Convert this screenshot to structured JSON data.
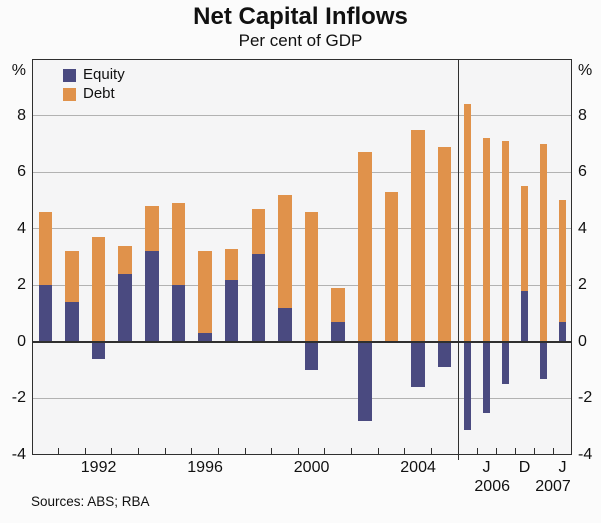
{
  "title": "Net Capital Inflows",
  "subtitle": "Per cent of GDP",
  "source_note": "Sources: ABS; RBA",
  "axis": {
    "unit_label": "%",
    "y_min": -4,
    "y_max": 10,
    "y_tick_values": [
      8,
      6,
      4,
      2,
      0,
      -2,
      -4
    ],
    "gridline_values": [
      8,
      6,
      4,
      2,
      -2
    ]
  },
  "legend": [
    {
      "label": "Equity",
      "color": "#4a4a80"
    },
    {
      "label": "Debt",
      "color": "#e0924b"
    }
  ],
  "chart_data": {
    "type": "bar",
    "stacked": true,
    "title": "Net Capital Inflows",
    "subtitle": "Per cent of GDP",
    "ylabel": "%",
    "ylim": [
      -4,
      10
    ],
    "grid": true,
    "legend_position": "top-left",
    "panels": [
      {
        "name": "annual",
        "frequency": "annual",
        "categories": [
          "1990",
          "1991",
          "1992",
          "1993",
          "1994",
          "1995",
          "1996",
          "1997",
          "1998",
          "1999",
          "2000",
          "2001",
          "2002",
          "2003",
          "2004",
          "2005"
        ],
        "series": [
          {
            "name": "Equity",
            "color": "#4a4a80",
            "values": [
              2.0,
              1.4,
              -0.6,
              2.4,
              3.2,
              2.0,
              0.3,
              2.2,
              3.1,
              1.2,
              -1.0,
              0.7,
              -2.8,
              0.0,
              -1.6,
              -0.9
            ]
          },
          {
            "name": "Debt",
            "color": "#e0924b",
            "values": [
              2.6,
              1.8,
              3.7,
              1.0,
              1.6,
              2.9,
              2.9,
              1.1,
              1.6,
              4.0,
              4.6,
              1.2,
              6.7,
              5.3,
              7.5,
              6.9
            ]
          }
        ],
        "x_tick_labels": [
          {
            "label": "1992",
            "slot": 2
          },
          {
            "label": "1996",
            "slot": 6
          },
          {
            "label": "2000",
            "slot": 10
          },
          {
            "label": "2004",
            "slot": 14
          }
        ],
        "x_year_labels": []
      },
      {
        "name": "quarterly",
        "frequency": "quarterly",
        "categories": [
          "Mar 2006",
          "Jun 2006",
          "Sep 2006",
          "Dec 2006",
          "Mar 2007",
          "Jun 2007"
        ],
        "series": [
          {
            "name": "Equity",
            "color": "#4a4a80",
            "values": [
              -3.1,
              -2.5,
              -1.5,
              1.8,
              -1.3,
              0.7
            ]
          },
          {
            "name": "Debt",
            "color": "#e0924b",
            "values": [
              8.4,
              7.2,
              7.1,
              3.7,
              7.0,
              4.3
            ]
          }
        ],
        "x_tick_labels": [
          {
            "label": "J",
            "slot": 1
          },
          {
            "label": "D",
            "slot": 3
          },
          {
            "label": "J",
            "slot": 5
          }
        ],
        "x_year_labels": [
          {
            "label": "2006",
            "slot": 1.3
          },
          {
            "label": "2007",
            "slot": 4.5
          }
        ]
      }
    ]
  }
}
